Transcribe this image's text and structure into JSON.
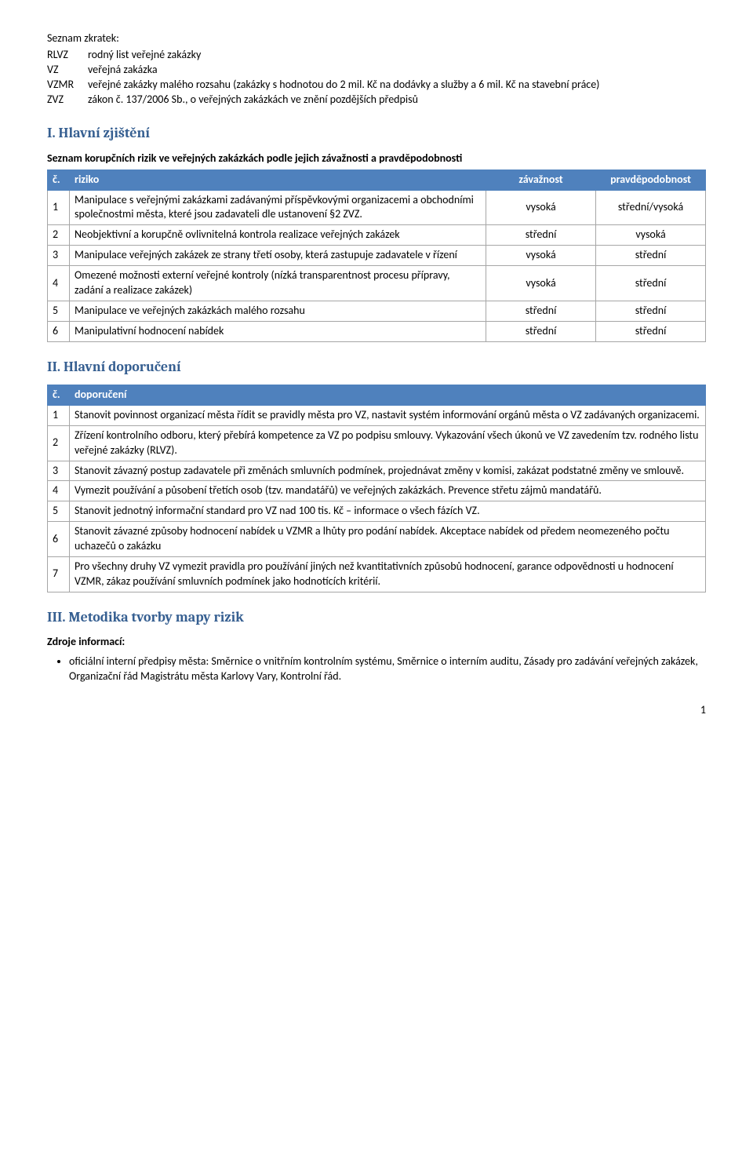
{
  "abbrev": {
    "title": "Seznam zkratek:",
    "items": [
      {
        "key": "RLVZ",
        "val": "rodný list veřejné zakázky"
      },
      {
        "key": "VZ",
        "val": "veřejná zakázka"
      },
      {
        "key": "VZMR",
        "val": "veřejné zakázky malého rozsahu (zakázky s hodnotou do 2 mil. Kč na dodávky a služby a 6 mil. Kč na stavební práce)"
      },
      {
        "key": "ZVZ",
        "val": "zákon č. 137/2006 Sb., o veřejných zakázkách ve znění pozdějších předpisů"
      }
    ]
  },
  "section1": {
    "heading": "I. Hlavní zjištění",
    "subtitle": "Seznam korupčních rizik ve veřejných zakázkách podle jejich závažnosti a pravděpodobnosti",
    "columns": {
      "num": "č.",
      "risk": "riziko",
      "sev": "závažnost",
      "prob": "pravděpodobnost"
    },
    "rows": [
      {
        "n": "1",
        "risk": "Manipulace s veřejnými zakázkami zadávanými příspěvkovými organizacemi a obchodními společnostmi města, které jsou zadavateli dle ustanovení §2 ZVZ.",
        "sev": "vysoká",
        "prob": "střední/vysoká"
      },
      {
        "n": "2",
        "risk": "Neobjektivní a korupčně ovlivnitelná kontrola realizace veřejných zakázek",
        "sev": "střední",
        "prob": "vysoká"
      },
      {
        "n": "3",
        "risk": "Manipulace veřejných zakázek ze strany třetí osoby, která zastupuje zadavatele v řízení",
        "sev": "vysoká",
        "prob": "střední"
      },
      {
        "n": "4",
        "risk": "Omezené možnosti externí veřejné kontroly (nízká transparentnost procesu přípravy, zadání a realizace zakázek)",
        "sev": "vysoká",
        "prob": "střední"
      },
      {
        "n": "5",
        "risk": "Manipulace ve veřejných zakázkách malého rozsahu",
        "sev": "střední",
        "prob": "střední"
      },
      {
        "n": "6",
        "risk": "Manipulativní hodnocení nabídek",
        "sev": "střední",
        "prob": "střední"
      }
    ]
  },
  "section2": {
    "heading": "II. Hlavní doporučení",
    "columns": {
      "num": "č.",
      "rec": "doporučení"
    },
    "rows": [
      {
        "n": "1",
        "rec": "Stanovit povinnost organizací města řídit se pravidly města pro VZ, nastavit systém informování orgánů města o VZ zadávaných organizacemi."
      },
      {
        "n": "2",
        "rec": "Zřízení kontrolního odboru, který přebírá kompetence za VZ po podpisu smlouvy. Vykazování všech úkonů ve VZ zavedením tzv. rodného listu veřejné zakázky (RLVZ)."
      },
      {
        "n": "3",
        "rec": "Stanovit závazný postup zadavatele při změnách smluvních podmínek, projednávat změny v komisi, zakázat podstatné změny ve smlouvě."
      },
      {
        "n": "4",
        "rec": "Vymezit používání a působení třetích osob (tzv. mandatářů) ve veřejných zakázkách. Prevence střetu zájmů mandatářů."
      },
      {
        "n": "5",
        "rec": "Stanovit jednotný informační standard pro VZ nad 100 tis. Kč – informace o všech fázích VZ."
      },
      {
        "n": "6",
        "rec": "Stanovit závazné způsoby hodnocení nabídek u VZMR a lhůty pro podání nabídek. Akceptace nabídek od předem neomezeného počtu uchazečů o zakázku"
      },
      {
        "n": "7",
        "rec": "Pro všechny druhy VZ vymezit pravidla pro používání jiných než kvantitativních způsobů hodnocení, garance odpovědnosti u hodnocení VZMR, zákaz používání smluvních podmínek jako hodnotících kritérií."
      }
    ]
  },
  "section3": {
    "heading": "III. Metodika tvorby mapy rizik",
    "source_title": "Zdroje informací:",
    "bullets": [
      "oficiální interní předpisy města: Směrnice o vnitřním kontrolním systému, Směrnice o interním auditu, Zásady pro zadávání veřejných zakázek, Organizační řád Magistrátu města Karlovy Vary, Kontrolní řád."
    ]
  },
  "page_number": "1",
  "colors": {
    "heading": "#365f91",
    "th_bg": "#4f81bd",
    "th_fg": "#ffffff",
    "border": "#a6a6a6",
    "text": "#000000",
    "bg": "#ffffff"
  }
}
